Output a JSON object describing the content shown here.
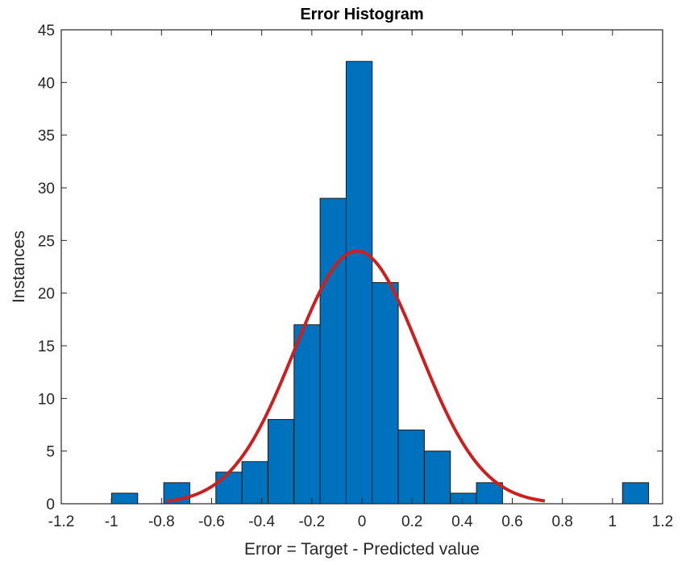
{
  "chart_data": {
    "type": "bar",
    "title": "Error Histogram",
    "xlabel": "Error = Target - Predicted value",
    "ylabel": "Instances",
    "xlim": [
      -1.2,
      1.2
    ],
    "ylim": [
      0,
      45
    ],
    "xticks": [
      -1.2,
      -1,
      -0.8,
      -0.6,
      -0.4,
      -0.2,
      0,
      0.2,
      0.4,
      0.6,
      0.8,
      1,
      1.2
    ],
    "xtick_labels": [
      "-1.2",
      "-1",
      "-0.8",
      "-0.6",
      "-0.4",
      "-0.2",
      "0",
      "0.2",
      "0.4",
      "0.6",
      "0.8",
      "1",
      "1.2"
    ],
    "yticks": [
      0,
      5,
      10,
      15,
      20,
      25,
      30,
      35,
      40,
      45
    ],
    "ytick_labels": [
      "0",
      "5",
      "10",
      "15",
      "20",
      "25",
      "30",
      "35",
      "40",
      "45"
    ],
    "grid": false,
    "bars": {
      "bin_width": 0.104,
      "color": "#0072BD",
      "edge_color": "#1a1a1a",
      "centers": [
        -0.947,
        -0.739,
        -0.531,
        -0.427,
        -0.323,
        -0.219,
        -0.115,
        -0.011,
        0.093,
        0.197,
        0.301,
        0.405,
        0.509,
        1.092
      ],
      "values": [
        1,
        2,
        3,
        4,
        8,
        17,
        29,
        42,
        21,
        7,
        5,
        1,
        2,
        2
      ]
    },
    "fit_curve": {
      "type": "normal",
      "color": "#CC1F1F",
      "peak": 24,
      "mean": -0.02,
      "sigma": 0.25,
      "x_range": [
        -0.78,
        0.73
      ]
    }
  }
}
